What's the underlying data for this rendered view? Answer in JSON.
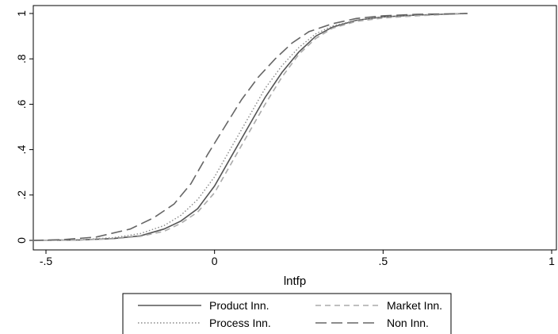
{
  "chart_data": {
    "type": "line",
    "title": "",
    "xlabel": "lntfp",
    "ylabel": "",
    "xlim": [
      -0.55,
      1.0
    ],
    "ylim": [
      0,
      1
    ],
    "x_ticks": [
      -0.5,
      0,
      0.5,
      1
    ],
    "x_tick_labels": [
      "-.5",
      "0",
      ".5",
      "1"
    ],
    "y_ticks": [
      0,
      0.2,
      0.4,
      0.6,
      0.8,
      1
    ],
    "y_tick_labels": [
      "0",
      ".2",
      ".4",
      ".6",
      ".8",
      "1"
    ],
    "grid": false,
    "legend_position": "bottom",
    "series": [
      {
        "name": "Product Inn.",
        "style": "solid",
        "color": "#555555",
        "points": [
          [
            -0.54,
            0.0
          ],
          [
            -0.4,
            0.002
          ],
          [
            -0.3,
            0.008
          ],
          [
            -0.22,
            0.02
          ],
          [
            -0.15,
            0.05
          ],
          [
            -0.1,
            0.085
          ],
          [
            -0.05,
            0.14
          ],
          [
            0.0,
            0.24
          ],
          [
            0.05,
            0.37
          ],
          [
            0.1,
            0.5
          ],
          [
            0.15,
            0.63
          ],
          [
            0.2,
            0.74
          ],
          [
            0.25,
            0.83
          ],
          [
            0.3,
            0.9
          ],
          [
            0.35,
            0.94
          ],
          [
            0.42,
            0.97
          ],
          [
            0.5,
            0.985
          ],
          [
            0.6,
            0.993
          ],
          [
            0.75,
            1.0
          ]
        ]
      },
      {
        "name": "Process Inn.",
        "style": "dotted",
        "color": "#888888",
        "points": [
          [
            -0.54,
            0.0
          ],
          [
            -0.4,
            0.003
          ],
          [
            -0.3,
            0.012
          ],
          [
            -0.22,
            0.03
          ],
          [
            -0.15,
            0.065
          ],
          [
            -0.1,
            0.11
          ],
          [
            -0.05,
            0.18
          ],
          [
            0.0,
            0.28
          ],
          [
            0.05,
            0.41
          ],
          [
            0.1,
            0.54
          ],
          [
            0.15,
            0.67
          ],
          [
            0.2,
            0.77
          ],
          [
            0.25,
            0.85
          ],
          [
            0.3,
            0.91
          ],
          [
            0.35,
            0.945
          ],
          [
            0.42,
            0.97
          ],
          [
            0.5,
            0.985
          ],
          [
            0.6,
            0.993
          ],
          [
            0.75,
            1.0
          ]
        ]
      },
      {
        "name": "Market Inn.",
        "style": "short-dash",
        "color": "#aaaaaa",
        "points": [
          [
            -0.54,
            0.0
          ],
          [
            -0.4,
            0.002
          ],
          [
            -0.3,
            0.007
          ],
          [
            -0.22,
            0.018
          ],
          [
            -0.15,
            0.04
          ],
          [
            -0.1,
            0.075
          ],
          [
            -0.05,
            0.125
          ],
          [
            0.0,
            0.21
          ],
          [
            0.05,
            0.34
          ],
          [
            0.1,
            0.47
          ],
          [
            0.15,
            0.6
          ],
          [
            0.2,
            0.72
          ],
          [
            0.25,
            0.82
          ],
          [
            0.3,
            0.89
          ],
          [
            0.35,
            0.935
          ],
          [
            0.42,
            0.965
          ],
          [
            0.5,
            0.98
          ],
          [
            0.6,
            0.99
          ],
          [
            0.75,
            1.0
          ]
        ]
      },
      {
        "name": "Non Inn.",
        "style": "long-dash",
        "color": "#666666",
        "points": [
          [
            -0.54,
            0.0
          ],
          [
            -0.45,
            0.003
          ],
          [
            -0.35,
            0.015
          ],
          [
            -0.25,
            0.05
          ],
          [
            -0.18,
            0.1
          ],
          [
            -0.12,
            0.16
          ],
          [
            -0.07,
            0.25
          ],
          [
            -0.02,
            0.38
          ],
          [
            0.03,
            0.5
          ],
          [
            0.08,
            0.62
          ],
          [
            0.13,
            0.72
          ],
          [
            0.18,
            0.8
          ],
          [
            0.23,
            0.87
          ],
          [
            0.28,
            0.92
          ],
          [
            0.35,
            0.955
          ],
          [
            0.42,
            0.978
          ],
          [
            0.5,
            0.99
          ],
          [
            0.6,
            0.996
          ],
          [
            0.75,
            1.0
          ]
        ]
      }
    ]
  }
}
